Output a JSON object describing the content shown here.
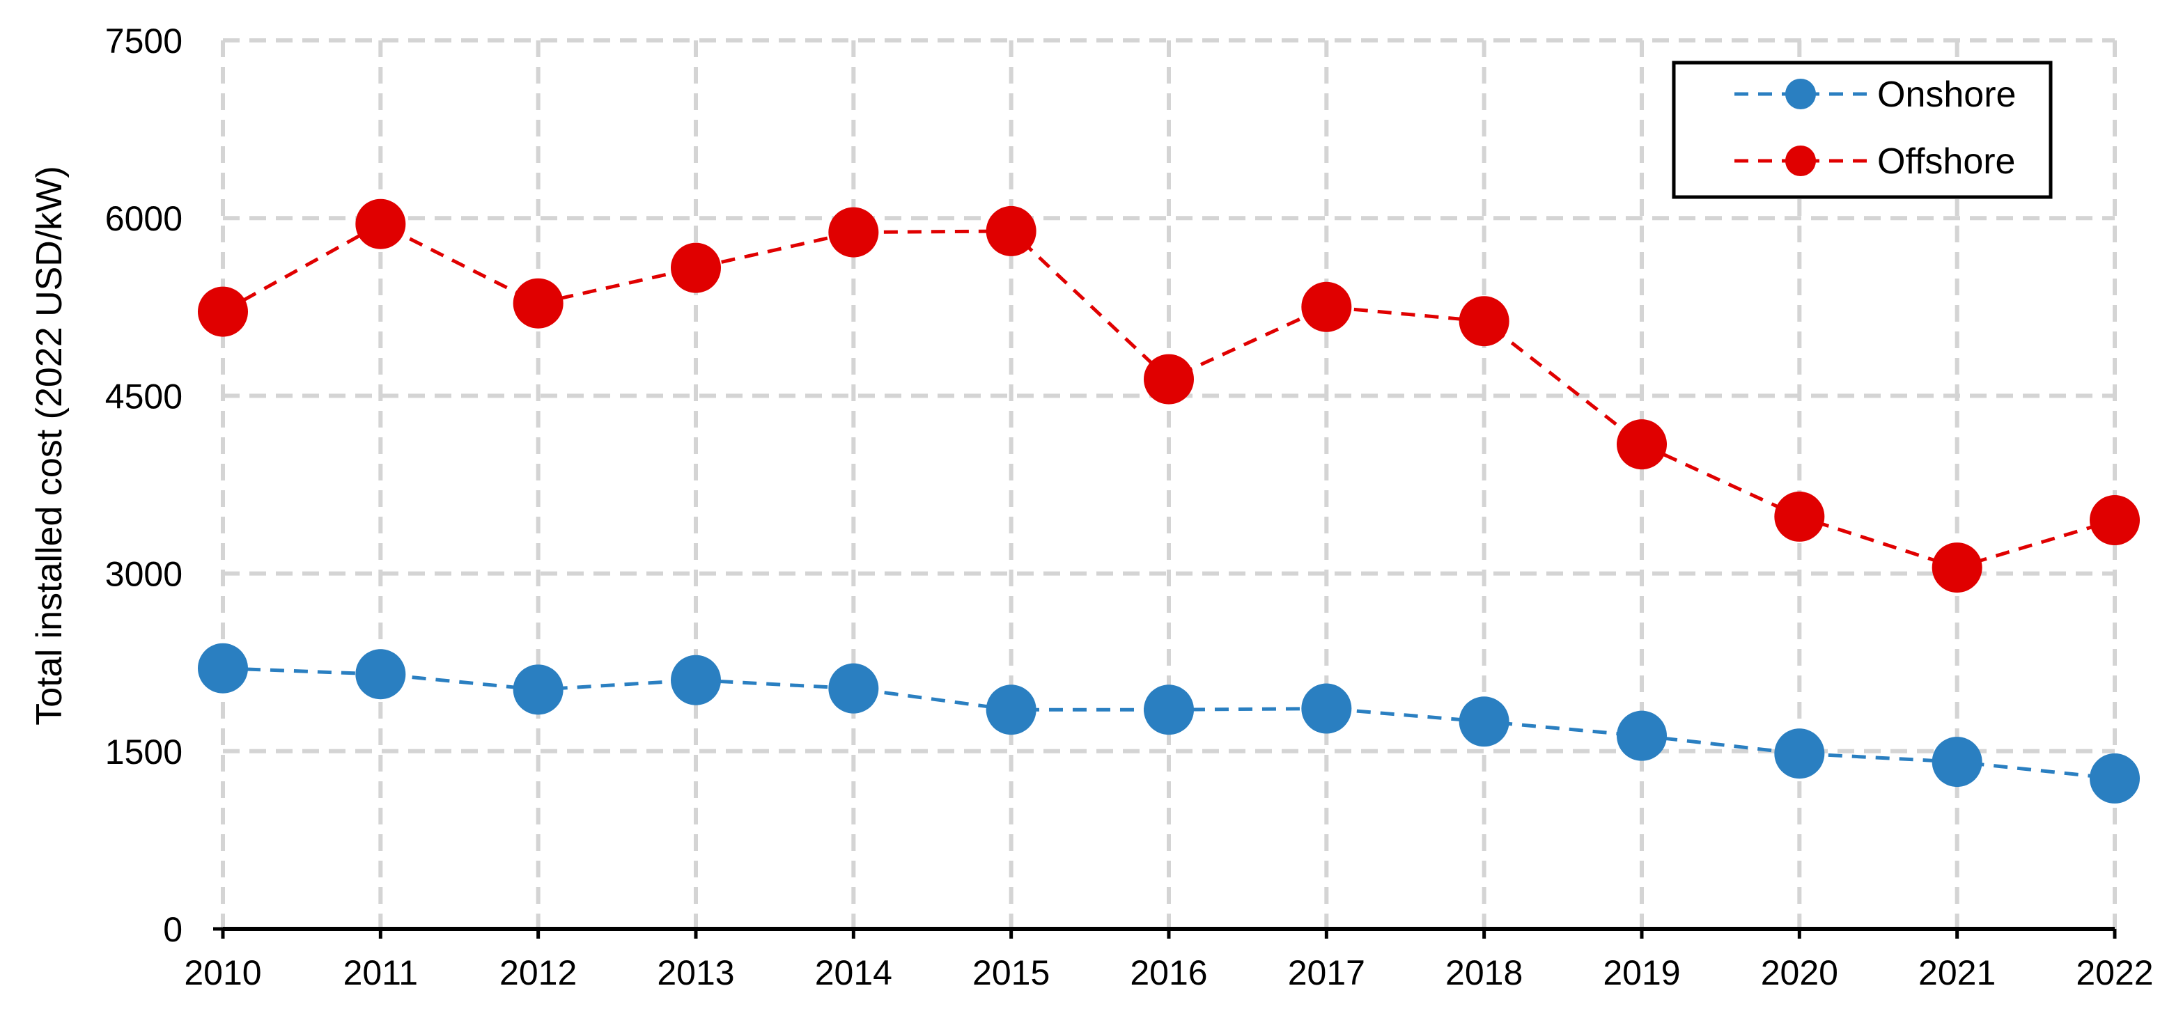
{
  "chart_data": {
    "type": "line",
    "title": "",
    "xlabel": "",
    "ylabel": "Total installed cost (2022 USD/kW)",
    "x": [
      "2010",
      "2011",
      "2012",
      "2013",
      "2014",
      "2015",
      "2016",
      "2017",
      "2018",
      "2019",
      "2020",
      "2021",
      "2022"
    ],
    "ylim": [
      0,
      7500
    ],
    "yticks": [
      "0",
      "1500",
      "3000",
      "4500",
      "6000",
      "7500"
    ],
    "grid": true,
    "legend_position": "top-right",
    "series": [
      {
        "name": "Onshore",
        "color": "#2a7fc1",
        "marker": "circle",
        "line_style": "dashed",
        "values": [
          2200,
          2150,
          2020,
          2100,
          2030,
          1850,
          1850,
          1860,
          1750,
          1630,
          1480,
          1410,
          1270
        ]
      },
      {
        "name": "Offshore",
        "color": "#e00000",
        "marker": "circle",
        "line_style": "dashed",
        "values": [
          5210,
          5950,
          5280,
          5580,
          5880,
          5890,
          4640,
          5250,
          5130,
          4090,
          3480,
          3050,
          3450
        ]
      }
    ]
  }
}
